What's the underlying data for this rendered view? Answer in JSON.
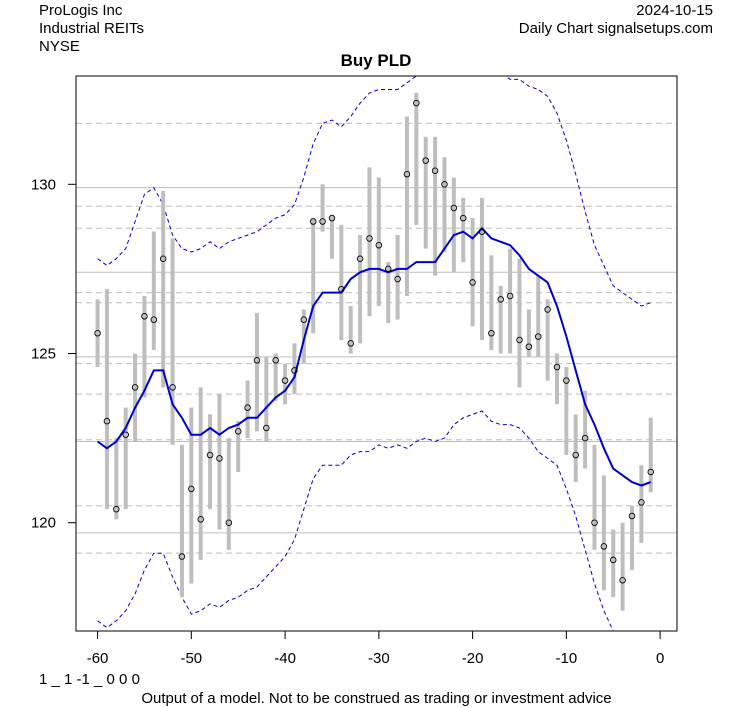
{
  "header": {
    "company": "ProLogis Inc",
    "industry": "Industrial REITs",
    "exchange": "NYSE",
    "date": "2024-10-15",
    "source": "Daily Chart signalsetups.com"
  },
  "footer": {
    "code": "1 _ 1 -1 _ 0 0 0",
    "disclaimer": "Output of a model. Not to be construed as trading or investment advice"
  },
  "colors": {
    "bar": "#bebebe",
    "center_line": "#0000cd",
    "band": "#0000cd",
    "grid": "#bebebe"
  },
  "chart_data": {
    "type": "line",
    "title": "Buy PLD",
    "xlabel": "",
    "ylabel": "",
    "xlim": [
      -62.3,
      1.8
    ],
    "ylim": [
      116.8,
      133.2
    ],
    "x_ticks": [
      -60,
      -50,
      -40,
      -30,
      -20,
      -10,
      0
    ],
    "y_ticks": [
      120,
      125,
      130
    ],
    "grid_solid": [
      119.7,
      122.4,
      124.9,
      127.4,
      129.9
    ],
    "grid_dashed": [
      119.1,
      120.5,
      122.45,
      123.8,
      124.7,
      126.5,
      126.8,
      128.7,
      129.35,
      131.8
    ],
    "bars": {
      "x": [
        -60,
        -59,
        -58,
        -57,
        -56,
        -55,
        -54,
        -53,
        -52,
        -51,
        -50,
        -49,
        -48,
        -47,
        -46,
        -45,
        -44,
        -43,
        -42,
        -41,
        -40,
        -39,
        -38,
        -37,
        -36,
        -35,
        -34,
        -33,
        -32,
        -31,
        -30,
        -29,
        -28,
        -27,
        -26,
        -25,
        -24,
        -23,
        -22,
        -21,
        -20,
        -19,
        -18,
        -17,
        -16,
        -15,
        -14,
        -13,
        -12,
        -11,
        -10,
        -9,
        -8,
        -7,
        -6,
        -5,
        -4,
        -3,
        -2,
        -1
      ],
      "close": [
        125.6,
        123.0,
        120.4,
        122.6,
        124.0,
        126.1,
        126.0,
        127.8,
        124.0,
        119.0,
        121.0,
        120.1,
        122.0,
        121.9,
        120.0,
        122.7,
        123.4,
        124.8,
        122.8,
        124.8,
        124.2,
        124.5,
        126.0,
        128.9,
        128.9,
        129.0,
        126.9,
        125.3,
        127.8,
        128.4,
        128.2,
        127.5,
        127.2,
        130.3,
        132.4,
        130.7,
        130.4,
        130.0,
        129.3,
        129.0,
        127.1,
        128.6,
        125.6,
        126.6,
        126.7,
        125.4,
        125.2,
        125.5,
        126.3,
        124.6,
        124.2,
        122.0,
        122.5,
        120.0,
        119.3,
        118.9,
        118.3,
        120.2,
        120.6,
        121.5
      ],
      "high": [
        126.6,
        126.9,
        122.5,
        123.4,
        125.0,
        126.7,
        128.6,
        129.8,
        128.4,
        122.3,
        123.4,
        124.0,
        123.2,
        123.8,
        122.5,
        123.0,
        124.2,
        126.2,
        124.9,
        125.0,
        124.7,
        125.3,
        126.3,
        129.0,
        130.0,
        129.1,
        128.8,
        126.4,
        128.5,
        130.5,
        130.2,
        127.7,
        128.5,
        132.0,
        132.7,
        131.4,
        131.4,
        130.8,
        130.2,
        129.6,
        129.0,
        129.6,
        127.9,
        127.0,
        128.1,
        127.8,
        126.3,
        127.3,
        126.6,
        125.0,
        124.6,
        123.2,
        123.9,
        122.3,
        121.4,
        119.8,
        120.0,
        120.5,
        121.7,
        123.1
      ],
      "low": [
        124.6,
        120.4,
        120.1,
        120.4,
        122.4,
        123.7,
        125.1,
        124.0,
        122.3,
        117.8,
        118.2,
        118.9,
        120.4,
        119.8,
        119.2,
        121.5,
        122.5,
        122.7,
        122.4,
        123.6,
        123.5,
        123.8,
        124.7,
        125.6,
        128.6,
        127.8,
        125.4,
        125.0,
        125.3,
        126.1,
        126.4,
        125.9,
        126.0,
        126.7,
        128.8,
        128.1,
        127.3,
        128.0,
        127.4,
        127.7,
        125.8,
        125.4,
        125.1,
        125.0,
        125.0,
        124.0,
        124.9,
        124.9,
        124.2,
        123.5,
        122.0,
        121.2,
        121.6,
        119.2,
        118.0,
        117.8,
        117.4,
        118.6,
        119.4,
        120.9
      ]
    },
    "center_line": {
      "name": "center",
      "x": [
        -60,
        -59,
        -58,
        -57,
        -56,
        -55,
        -54,
        -53,
        -52,
        -51,
        -50,
        -49,
        -48,
        -47,
        -46,
        -45,
        -44,
        -43,
        -42,
        -41,
        -40,
        -39,
        -38,
        -37,
        -36,
        -35,
        -34,
        -33,
        -32,
        -31,
        -30,
        -29,
        -28,
        -27,
        -26,
        -25,
        -24,
        -23,
        -22,
        -21,
        -20,
        -19,
        -18,
        -17,
        -16,
        -15,
        -14,
        -13,
        -12,
        -11,
        -10,
        -9,
        -8,
        -7,
        -6,
        -5,
        -4,
        -3,
        -2,
        -1
      ],
      "y": [
        122.4,
        122.2,
        122.4,
        122.8,
        123.4,
        123.9,
        124.5,
        124.5,
        123.5,
        123.1,
        122.6,
        122.6,
        122.8,
        122.6,
        122.8,
        122.9,
        123.1,
        123.1,
        123.4,
        123.7,
        123.9,
        124.3,
        125.4,
        126.4,
        126.8,
        126.8,
        126.8,
        127.2,
        127.4,
        127.5,
        127.5,
        127.4,
        127.5,
        127.5,
        127.7,
        127.7,
        127.7,
        128.1,
        128.5,
        128.6,
        128.4,
        128.7,
        128.4,
        128.3,
        128.2,
        127.9,
        127.5,
        127.3,
        127.1,
        126.4,
        125.5,
        124.5,
        123.5,
        122.9,
        122.2,
        121.6,
        121.4,
        121.2,
        121.1,
        121.2
      ]
    },
    "upper_band": {
      "name": "upper",
      "x": [
        -60,
        -59,
        -58,
        -57,
        -56,
        -55,
        -54,
        -53,
        -52,
        -51,
        -50,
        -49,
        -48,
        -47,
        -46,
        -45,
        -44,
        -43,
        -42,
        -41,
        -40,
        -39,
        -38,
        -37,
        -36,
        -35,
        -34,
        -33,
        -32,
        -31,
        -30,
        -29,
        -28,
        -27,
        -26,
        -25,
        -24,
        -23,
        -22,
        -21,
        -20,
        -19,
        -18,
        -17,
        -16,
        -15,
        -14,
        -13,
        -12,
        -11,
        -10,
        -9,
        -8,
        -7,
        -6,
        -5,
        -4,
        -3,
        -2,
        -1
      ],
      "y": [
        127.8,
        127.6,
        127.8,
        128.1,
        128.9,
        129.7,
        129.9,
        129.4,
        128.5,
        128.1,
        128.0,
        128.1,
        128.3,
        128.1,
        128.3,
        128.4,
        128.5,
        128.6,
        128.8,
        129.0,
        129.1,
        129.4,
        130.2,
        131.2,
        131.8,
        131.9,
        131.7,
        132.0,
        132.4,
        132.7,
        132.8,
        132.8,
        132.8,
        133.0,
        133.2,
        133.4,
        133.5,
        133.6,
        133.7,
        133.7,
        133.6,
        133.6,
        133.5,
        133.3,
        133.1,
        133.1,
        132.9,
        132.8,
        132.6,
        132.1,
        131.3,
        130.3,
        129.2,
        128.2,
        127.6,
        127.0,
        126.8,
        126.6,
        126.4,
        126.5
      ]
    },
    "lower_band": {
      "name": "lower",
      "x": [
        -60,
        -59,
        -58,
        -57,
        -56,
        -55,
        -54,
        -53,
        -52,
        -51,
        -50,
        -49,
        -48,
        -47,
        -46,
        -45,
        -44,
        -43,
        -42,
        -41,
        -40,
        -39,
        -38,
        -37,
        -36,
        -35,
        -34,
        -33,
        -32,
        -31,
        -30,
        -29,
        -28,
        -27,
        -26,
        -25,
        -24,
        -23,
        -22,
        -21,
        -20,
        -19,
        -18,
        -17,
        -16,
        -15,
        -14,
        -13,
        -12,
        -11,
        -10,
        -9,
        -8,
        -7,
        -6,
        -5,
        -4,
        -3,
        -2,
        -1
      ],
      "y": [
        117.1,
        116.9,
        117.1,
        117.4,
        117.9,
        118.6,
        119.1,
        119.1,
        118.4,
        117.8,
        117.3,
        117.4,
        117.6,
        117.5,
        117.7,
        117.8,
        118.0,
        118.1,
        118.4,
        118.7,
        119.0,
        119.5,
        120.4,
        121.3,
        121.7,
        121.7,
        121.7,
        122.0,
        122.1,
        122.1,
        122.3,
        122.2,
        122.3,
        122.2,
        122.4,
        122.5,
        122.4,
        122.5,
        122.9,
        123.1,
        123.2,
        123.3,
        123.0,
        122.9,
        122.9,
        122.8,
        122.5,
        122.1,
        121.9,
        121.7,
        121.0,
        120.2,
        119.2,
        118.2,
        117.4,
        116.8,
        116.5,
        116.2,
        116.0,
        116.0
      ]
    }
  }
}
